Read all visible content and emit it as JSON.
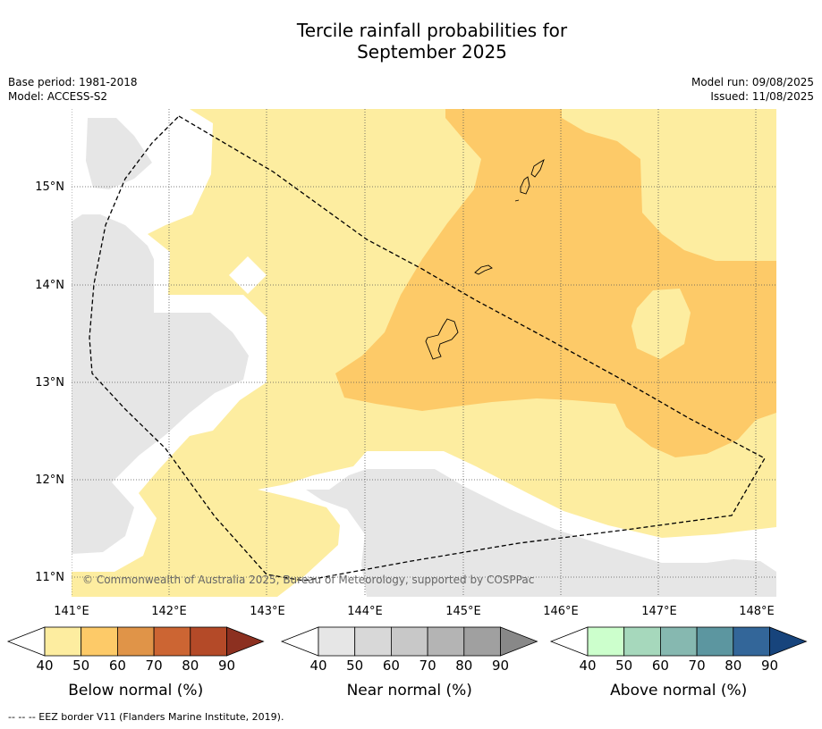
{
  "title_line1": "Tercile rainfall probabilities for",
  "title_line2": "September 2025",
  "base_period": "Base period: 1981-2018",
  "model": "Model: ACCESS-S2",
  "model_run": "Model run: 09/08/2025",
  "issued": "Issued: 11/08/2025",
  "copyright": "© Commonwealth of Australia 2025, Bureau of Meteorology, supported by COSPPac",
  "lon_labels": [
    "141°E",
    "142°E",
    "143°E",
    "144°E",
    "145°E",
    "146°E",
    "147°E",
    "148°E"
  ],
  "lat_labels": [
    "15°N",
    "14°N",
    "13°N",
    "12°N",
    "11°N"
  ],
  "colorbars": [
    {
      "label": "Below normal (%)",
      "ticks": [
        "40",
        "50",
        "60",
        "70",
        "80",
        "90"
      ],
      "colors": [
        "#fdeda0",
        "#fdca68",
        "#e09448",
        "#cc6533",
        "#b44a28",
        "#8c3020"
      ]
    },
    {
      "label": "Near normal (%)",
      "ticks": [
        "40",
        "50",
        "60",
        "70",
        "80",
        "90"
      ],
      "colors": [
        "#e6e6e6",
        "#d8d8d8",
        "#c8c8c8",
        "#b4b4b4",
        "#a0a0a0",
        "#888888"
      ]
    },
    {
      "label": "Above normal (%)",
      "ticks": [
        "40",
        "50",
        "60",
        "70",
        "80",
        "90"
      ],
      "colors": [
        "#ccffcc",
        "#a6d8bc",
        "#86b8b0",
        "#5c96a0",
        "#336699",
        "#17447c"
      ]
    }
  ],
  "legend_note": "--  --  -- EEZ border V11 (Flanders Marine Institute, 2019)."
}
